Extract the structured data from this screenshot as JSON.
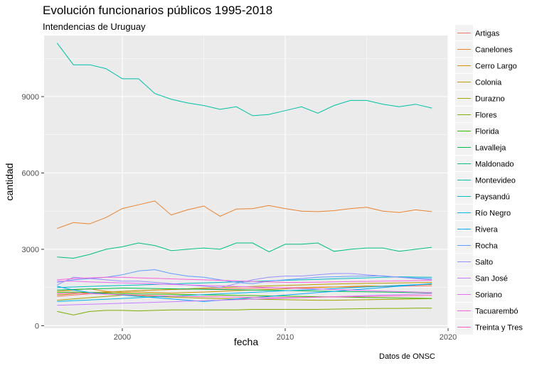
{
  "title": "Evolución funcionarios públicos 1995-2018",
  "subtitle": "Intendencias de Uruguay",
  "caption": "Datos de ONSC",
  "chart_data": {
    "type": "line",
    "xlabel": "fecha",
    "ylabel": "cantidad",
    "xlim": [
      1995.2,
      2020
    ],
    "ylim": [
      -100,
      11400
    ],
    "x_ticks": [
      2000,
      2010,
      2020
    ],
    "y_ticks": [
      0,
      3000,
      6000,
      9000
    ],
    "x_tick_labels": [
      "2000",
      "2010",
      "2020"
    ],
    "y_tick_labels": [
      "0",
      "3000",
      "6000",
      "9000"
    ],
    "grid": true,
    "legend_position": "right",
    "x": [
      1996,
      1997,
      1998,
      1999,
      2000,
      2001,
      2002,
      2003,
      2004,
      2005,
      2006,
      2007,
      2008,
      2009,
      2010,
      2011,
      2012,
      2013,
      2014,
      2015,
      2016,
      2017,
      2018,
      2019
    ],
    "series": [
      {
        "name": "Artigas",
        "color": "#F8766D",
        "values": [
          1150,
          1200,
          1250,
          1300,
          1350,
          1380,
          1400,
          1420,
          1430,
          1450,
          1440,
          1460,
          1470,
          1480,
          1490,
          1500,
          1510,
          1520,
          1520,
          1530,
          1540,
          1550,
          1560,
          1570
        ]
      },
      {
        "name": "Canelones",
        "color": "#EA8331",
        "values": [
          3820,
          4050,
          4000,
          4250,
          4600,
          4750,
          4900,
          4350,
          4550,
          4700,
          4300,
          4580,
          4600,
          4720,
          4600,
          4500,
          4480,
          4520,
          4600,
          4650,
          4500,
          4450,
          4550,
          4480
        ]
      },
      {
        "name": "Cerro Largo",
        "color": "#D89000",
        "values": [
          1350,
          1400,
          1450,
          1350,
          1300,
          1320,
          1300,
          1280,
          1300,
          1320,
          1350,
          1380,
          1400,
          1420,
          1450,
          1480,
          1500,
          1520,
          1540,
          1560,
          1550,
          1580,
          1600,
          1620
        ]
      },
      {
        "name": "Colonia",
        "color": "#C09B00",
        "values": [
          1200,
          1250,
          1300,
          1320,
          1350,
          1380,
          1400,
          1420,
          1450,
          1480,
          1500,
          1520,
          1540,
          1560,
          1580,
          1600,
          1620,
          1640,
          1650,
          1660,
          1670,
          1680,
          1690,
          1700
        ]
      },
      {
        "name": "Durazno",
        "color": "#A3A500",
        "values": [
          1000,
          1050,
          1100,
          1150,
          1200,
          1180,
          1150,
          1120,
          1100,
          1080,
          1060,
          1050,
          1040,
          1030,
          1020,
          1010,
          1000,
          1000,
          1010,
          1020,
          1030,
          1040,
          1050,
          1060
        ]
      },
      {
        "name": "Flores",
        "color": "#7CAE00",
        "values": [
          560,
          420,
          560,
          600,
          600,
          580,
          600,
          620,
          620,
          620,
          620,
          620,
          640,
          640,
          640,
          640,
          640,
          650,
          660,
          670,
          680,
          680,
          690,
          690
        ]
      },
      {
        "name": "Florida",
        "color": "#39B600",
        "values": [
          1300,
          1320,
          1300,
          1280,
          1260,
          1250,
          1240,
          1230,
          1220,
          1210,
          1200,
          1190,
          1180,
          1170,
          1160,
          1150,
          1140,
          1130,
          1120,
          1110,
          1100,
          1090,
          1080,
          1070
        ]
      },
      {
        "name": "Lavalleja",
        "color": "#00BB4E",
        "values": [
          1400,
          1420,
          1440,
          1460,
          1480,
          1470,
          1460,
          1450,
          1440,
          1430,
          1420,
          1410,
          1400,
          1390,
          1380,
          1370,
          1360,
          1350,
          1340,
          1330,
          1320,
          1310,
          1300,
          1290
        ]
      },
      {
        "name": "Maldonado",
        "color": "#00BF7D",
        "values": [
          2700,
          2650,
          2800,
          3000,
          3100,
          3250,
          3150,
          2950,
          3000,
          3050,
          3000,
          3250,
          3250,
          2900,
          3200,
          3200,
          3250,
          2920,
          3000,
          3050,
          3050,
          2920,
          3000,
          3080
        ]
      },
      {
        "name": "Montevideo",
        "color": "#00C1A3",
        "values": [
          11100,
          10250,
          10250,
          10100,
          9700,
          9700,
          9120,
          8900,
          8750,
          8650,
          8500,
          8600,
          8250,
          8300,
          8450,
          8600,
          8350,
          8650,
          8850,
          8850,
          8700,
          8600,
          8700,
          8550
        ]
      },
      {
        "name": "Paysandú",
        "color": "#00BFC4",
        "values": [
          1500,
          1520,
          1540,
          1560,
          1580,
          1600,
          1620,
          1640,
          1660,
          1680,
          1700,
          1720,
          1740,
          1760,
          1780,
          1800,
          1820,
          1840,
          1860,
          1880,
          1900,
          1920,
          1910,
          1900
        ]
      },
      {
        "name": "Río Negro",
        "color": "#00B8E7",
        "values": [
          950,
          980,
          1010,
          1040,
          1070,
          1100,
          1130,
          1160,
          1190,
          1220,
          1250,
          1280,
          1310,
          1340,
          1370,
          1400,
          1430,
          1460,
          1490,
          1520,
          1550,
          1580,
          1610,
          1640
        ]
      },
      {
        "name": "Rivera",
        "color": "#00A9FF",
        "values": [
          1550,
          1400,
          1300,
          1250,
          1200,
          1150,
          1100,
          1050,
          1000,
          950,
          1000,
          1050,
          1100,
          1150,
          1200,
          1250,
          1300,
          1350,
          1400,
          1450,
          1500,
          1550,
          1600,
          1650
        ]
      },
      {
        "name": "Rocha",
        "color": "#619CFF",
        "values": [
          1700,
          1800,
          1850,
          1900,
          2000,
          2150,
          2200,
          2050,
          1950,
          1900,
          1800,
          1700,
          1650,
          1750,
          1800,
          1850,
          1900,
          1920,
          1940,
          1950,
          1960,
          1900,
          1870,
          1850
        ]
      },
      {
        "name": "Salto",
        "color": "#9590FF",
        "values": [
          1600,
          1900,
          1850,
          1800,
          1750,
          1750,
          1700,
          1650,
          1600,
          1550,
          1500,
          1650,
          1800,
          1900,
          1950,
          1950,
          2000,
          2050,
          2050,
          2000,
          1950,
          1900,
          1850,
          1800
        ]
      },
      {
        "name": "San José",
        "color": "#C77CFF",
        "values": [
          800,
          820,
          840,
          860,
          880,
          900,
          920,
          940,
          960,
          980,
          1000,
          1020,
          1040,
          1060,
          1080,
          1100,
          1120,
          1140,
          1160,
          1180,
          1200,
          1220,
          1240,
          1260
        ]
      },
      {
        "name": "Soriano",
        "color": "#E76BF3",
        "values": [
          1750,
          1750,
          1720,
          1700,
          1680,
          1660,
          1640,
          1620,
          1600,
          1580,
          1560,
          1540,
          1520,
          1500,
          1480,
          1460,
          1440,
          1420,
          1400,
          1380,
          1360,
          1340,
          1320,
          1300
        ]
      },
      {
        "name": "Tacuarembó",
        "color": "#FA62DB",
        "values": [
          1800,
          1850,
          1880,
          1900,
          1900,
          1880,
          1860,
          1840,
          1820,
          1800,
          1780,
          1760,
          1740,
          1720,
          1700,
          1700,
          1710,
          1720,
          1730,
          1740,
          1750,
          1760,
          1770,
          1780
        ]
      },
      {
        "name": "Treinta y Tres",
        "color": "#FF62BC",
        "values": [
          1250,
          1280,
          1260,
          1240,
          1220,
          1200,
          1180,
          1160,
          1150,
          1140,
          1130,
          1120,
          1110,
          1100,
          1100,
          1110,
          1120,
          1130,
          1140,
          1150,
          1160,
          1170,
          1180,
          1190
        ]
      }
    ]
  }
}
